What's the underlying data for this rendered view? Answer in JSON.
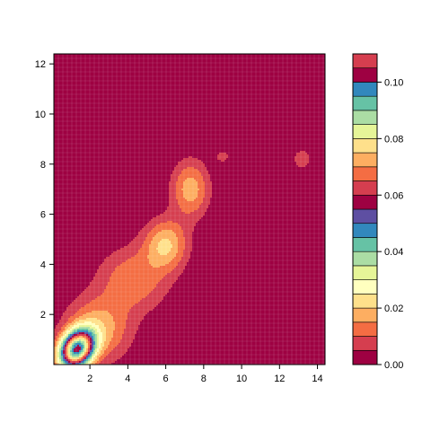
{
  "chart_data": {
    "type": "heatmap",
    "title": "",
    "xlabel": "",
    "ylabel": "",
    "xlim": [
      0.1,
      14.4
    ],
    "ylim": [
      0,
      12.4
    ],
    "x_ticks": [
      2,
      4,
      6,
      8,
      10,
      12,
      14
    ],
    "y_ticks": [
      2,
      4,
      6,
      8,
      10,
      12
    ],
    "grid": true,
    "legend": {
      "placement": "right",
      "type": "colorbar",
      "range": [
        0,
        0.11
      ],
      "ticks": [
        0.0,
        0.02,
        0.04,
        0.06,
        0.08,
        0.1
      ],
      "tick_labels": [
        "0.00",
        "0.02",
        "0.04",
        "0.06",
        "0.08",
        "0.10"
      ]
    },
    "levels": [
      {
        "min": 0.0,
        "max": 0.005,
        "color": "#9E0142"
      },
      {
        "min": 0.005,
        "max": 0.01,
        "color": "#D53E4F"
      },
      {
        "min": 0.01,
        "max": 0.015,
        "color": "#F46D43"
      },
      {
        "min": 0.015,
        "max": 0.02,
        "color": "#FDAE61"
      },
      {
        "min": 0.02,
        "max": 0.025,
        "color": "#FEE08B"
      },
      {
        "min": 0.025,
        "max": 0.03,
        "color": "#FFFFBF"
      },
      {
        "min": 0.03,
        "max": 0.035,
        "color": "#E6F598"
      },
      {
        "min": 0.035,
        "max": 0.04,
        "color": "#ABDDA4"
      },
      {
        "min": 0.04,
        "max": 0.045,
        "color": "#66C2A5"
      },
      {
        "min": 0.045,
        "max": 0.05,
        "color": "#3288BD"
      },
      {
        "min": 0.05,
        "max": 0.055,
        "color": "#5E4FA2"
      },
      {
        "min": 0.055,
        "max": 0.06,
        "color": "#9E0142"
      },
      {
        "min": 0.06,
        "max": 0.065,
        "color": "#D53E4F"
      },
      {
        "min": 0.065,
        "max": 0.07,
        "color": "#F46D43"
      },
      {
        "min": 0.07,
        "max": 0.075,
        "color": "#FDAE61"
      },
      {
        "min": 0.075,
        "max": 0.08,
        "color": "#FEE08B"
      },
      {
        "min": 0.08,
        "max": 0.085,
        "color": "#E6F598"
      },
      {
        "min": 0.085,
        "max": 0.09,
        "color": "#ABDDA4"
      },
      {
        "min": 0.09,
        "max": 0.095,
        "color": "#66C2A5"
      },
      {
        "min": 0.095,
        "max": 0.1,
        "color": "#3288BD"
      },
      {
        "min": 0.1,
        "max": 0.105,
        "color": "#9E0142"
      },
      {
        "min": 0.105,
        "max": 0.11,
        "color": "#D53E4F"
      }
    ],
    "density_peaks": [
      {
        "x": 1.3,
        "y": 0.6,
        "value": 0.1
      },
      {
        "x": 6.0,
        "y": 4.8,
        "value": 0.02
      },
      {
        "x": 7.3,
        "y": 7.0,
        "value": 0.018
      },
      {
        "x": 13.2,
        "y": 8.2,
        "value": 0.008
      }
    ]
  }
}
